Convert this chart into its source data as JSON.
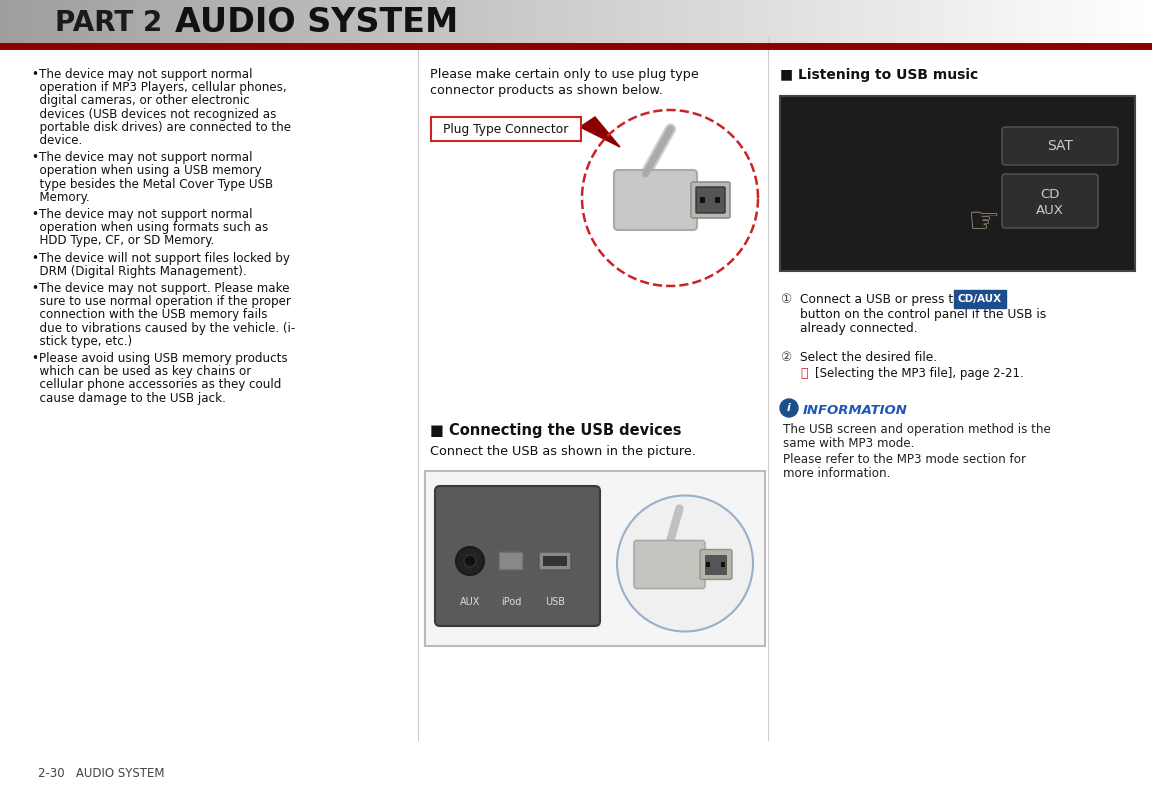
{
  "bg_color": "#ffffff",
  "header_line_color": "#8b0000",
  "header_text": "PART 2",
  "header_title": "AUDIO SYSTEM",
  "footer_text": "2-30   AUDIO SYSTEM",
  "col2_text1_line1": "Please make certain only to use plug type",
  "col2_text1_line2": "connector products as shown below.",
  "col2_connector_label": "Plug Type Connector",
  "col2_heading2": "■ Connecting the USB devices",
  "col2_subtext2": "Connect the USB as shown in the picture.",
  "col3_heading1": "■ Listening to USB music",
  "col3_step1_text": "Connect a USB or press the",
  "col3_step1_btn": "CD/AUX",
  "col3_step1_cont": "button on the control panel if the USB is",
  "col3_step1_cont2": "already connected.",
  "col3_step2_text": "Select the desired file.",
  "col3_step2_sub": "[Selecting the MP3 file], page 2-21.",
  "col3_info_title": "INFORMATION",
  "col3_info_text1": "The USB screen and operation method is the",
  "col3_info_text1b": "same with MP3 mode.",
  "col3_info_text2": "Please refer to the MP3 mode section for",
  "col3_info_text2b": "more information.",
  "bullet_lines": [
    [
      "•The device may not support normal",
      "  operation if MP3 Players, cellular phones,",
      "  digital cameras, or other electronic",
      "  devices (USB devices not recognized as",
      "  portable disk drives) are connected to the",
      "  device."
    ],
    [
      "•The device may not support normal",
      "  operation when using a USB memory",
      "  type besides the Metal Cover Type USB",
      "  Memory."
    ],
    [
      "•The device may not support normal",
      "  operation when using formats such as",
      "  HDD Type, CF, or SD Memory."
    ],
    [
      "•The device will not support files locked by",
      "  DRM (Digital Rights Management)."
    ],
    [
      "•The device may not support. Please make",
      "  sure to use normal operation if the proper",
      "  connection with the USB memory fails",
      "  due to vibrations caused by the vehicle. (i-",
      "  stick type, etc.)"
    ],
    [
      "•Please avoid using USB memory products",
      "  which can be used as key chains or",
      "  cellular phone accessories as they could",
      "  cause damage to the USB jack."
    ]
  ]
}
